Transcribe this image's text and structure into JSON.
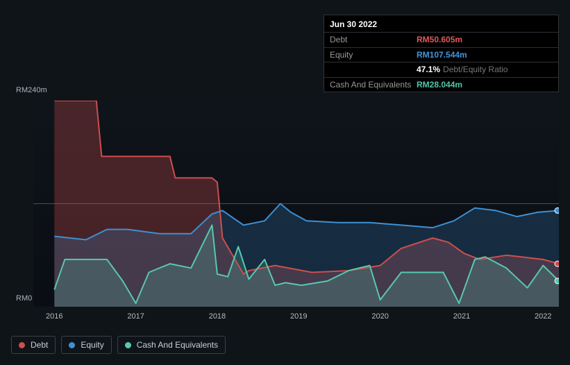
{
  "tooltip": {
    "date": "Jun 30 2022",
    "rows": [
      {
        "label": "Debt",
        "value": "RM50.605m",
        "color": "#e05a5a"
      },
      {
        "label": "Equity",
        "value": "RM107.544m",
        "color": "#4296db"
      },
      {
        "label": "",
        "value": "47.1%",
        "sub": "Debt/Equity Ratio",
        "color": "#ffffff"
      },
      {
        "label": "Cash And Equivalents",
        "value": "RM28.044m",
        "color": "#4fc7a8"
      }
    ]
  },
  "chart": {
    "type": "area",
    "background_color": "#0f141a",
    "grid_color": "#1f242b",
    "text_color": "#aab4bf",
    "font_size": 11,
    "ylim": [
      0,
      240
    ],
    "ylabels": [
      {
        "text": "RM240m",
        "v": 240
      },
      {
        "text": "RM0",
        "v": 0
      }
    ],
    "midline": 120,
    "x_categories": [
      "2016",
      "2017",
      "2018",
      "2019",
      "2020",
      "2021",
      "2022"
    ],
    "x_positions": [
      0.04,
      0.195,
      0.35,
      0.505,
      0.66,
      0.815,
      0.97
    ],
    "plot_xmin": 0.0,
    "plot_xmax": 1.0,
    "series": [
      {
        "name": "Debt",
        "stroke": "#cf4e4e",
        "fill": "#cf4e4e",
        "fill_opacity": 0.3,
        "line_width": 2,
        "x": [
          0.04,
          0.08,
          0.12,
          0.13,
          0.2,
          0.26,
          0.27,
          0.34,
          0.35,
          0.36,
          0.4,
          0.41,
          0.46,
          0.53,
          0.6,
          0.66,
          0.7,
          0.76,
          0.79,
          0.82,
          0.85,
          0.9,
          0.97,
          1.0
        ],
        "y": [
          240,
          240,
          240,
          175,
          175,
          175,
          150,
          150,
          145,
          80,
          38,
          42,
          48,
          40,
          42,
          48,
          68,
          80,
          75,
          62,
          55,
          60,
          55,
          50
        ]
      },
      {
        "name": "Equity",
        "stroke": "#3e90d4",
        "fill": "#3e90d4",
        "fill_opacity": 0.22,
        "line_width": 2,
        "x": [
          0.04,
          0.1,
          0.14,
          0.18,
          0.24,
          0.3,
          0.34,
          0.36,
          0.4,
          0.44,
          0.47,
          0.49,
          0.52,
          0.58,
          0.64,
          0.7,
          0.76,
          0.8,
          0.84,
          0.88,
          0.92,
          0.96,
          1.0
        ],
        "y": [
          82,
          78,
          90,
          90,
          85,
          85,
          108,
          112,
          95,
          100,
          120,
          110,
          100,
          98,
          98,
          95,
          92,
          100,
          115,
          112,
          105,
          110,
          112
        ]
      },
      {
        "name": "Cash And Equivalents",
        "stroke": "#58c9ad",
        "fill": "#58c9ad",
        "fill_opacity": 0.22,
        "line_width": 2,
        "x": [
          0.04,
          0.06,
          0.1,
          0.14,
          0.17,
          0.195,
          0.22,
          0.26,
          0.3,
          0.34,
          0.35,
          0.37,
          0.39,
          0.41,
          0.44,
          0.46,
          0.48,
          0.51,
          0.56,
          0.6,
          0.64,
          0.66,
          0.7,
          0.74,
          0.78,
          0.81,
          0.84,
          0.86,
          0.9,
          0.94,
          0.97,
          1.0
        ],
        "y": [
          20,
          55,
          55,
          55,
          30,
          4,
          40,
          50,
          45,
          95,
          38,
          35,
          70,
          32,
          55,
          25,
          28,
          25,
          30,
          42,
          48,
          8,
          40,
          40,
          40,
          4,
          55,
          58,
          45,
          22,
          48,
          30
        ]
      }
    ],
    "end_dots": [
      {
        "series": "Equity",
        "color": "#3e90d4",
        "y": 112
      },
      {
        "series": "Debt",
        "color": "#cf4e4e",
        "y": 50
      },
      {
        "series": "Cash And Equivalents",
        "color": "#58c9ad",
        "y": 30
      }
    ],
    "legend": [
      {
        "label": "Debt",
        "color": "#cf4e4e"
      },
      {
        "label": "Equity",
        "color": "#3e90d4"
      },
      {
        "label": "Cash And Equivalents",
        "color": "#58c9ad"
      }
    ]
  }
}
